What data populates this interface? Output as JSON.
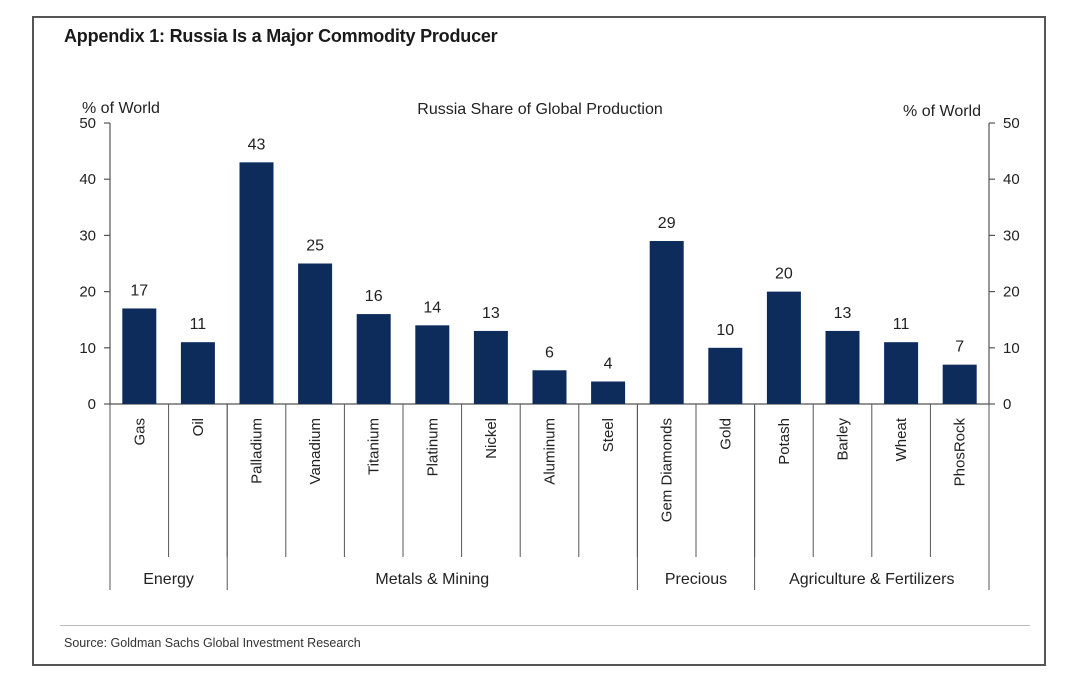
{
  "title": "Appendix 1: Russia Is a Major Commodity Producer",
  "source": "Source: Goldman Sachs Global Investment Research",
  "colors": {
    "bar": "#0d2c5c",
    "axis": "#555555",
    "text": "#222222"
  },
  "chart_data": {
    "type": "bar",
    "title": "Russia Share of Global Production",
    "ylabel_left": "% of World",
    "ylabel_right": "% of World",
    "ylim": [
      0,
      50
    ],
    "yticks": [
      0,
      10,
      20,
      30,
      40,
      50
    ],
    "grid": false,
    "categories": [
      "Gas",
      "Oil",
      "Palladium",
      "Vanadium",
      "Titanium",
      "Platinum",
      "Nickel",
      "Aluminum",
      "Steel",
      "Gem Diamonds",
      "Gold",
      "Potash",
      "Barley",
      "Wheat",
      "PhosRock"
    ],
    "values": [
      17,
      11,
      43,
      25,
      16,
      14,
      13,
      6,
      4,
      29,
      10,
      20,
      13,
      11,
      7
    ],
    "data_labels": [
      "17",
      "11",
      "43",
      "25",
      "16",
      "14",
      "13",
      "6",
      "4",
      "29",
      "10",
      "20",
      "13",
      "11",
      "7"
    ],
    "groups": [
      {
        "label": "Energy",
        "start": 0,
        "end": 1
      },
      {
        "label": "Metals & Mining",
        "start": 2,
        "end": 8
      },
      {
        "label": "Precious",
        "start": 9,
        "end": 10
      },
      {
        "label": "Agriculture & Fertilizers",
        "start": 11,
        "end": 14
      }
    ]
  }
}
